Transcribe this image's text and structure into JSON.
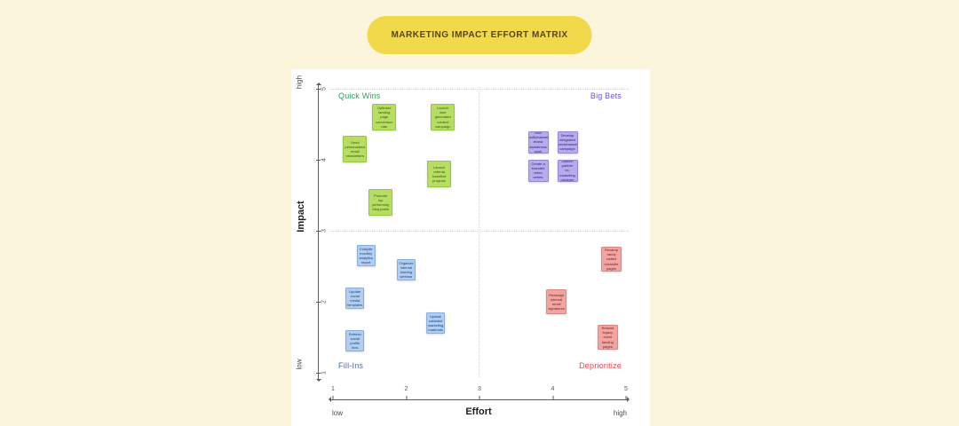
{
  "title": "MARKETING IMPACT EFFORT MATRIX",
  "colors": {
    "page_background": "#FBF5DC",
    "panel_background": "#FFFFFF",
    "title_pill_background": "#F2D84B",
    "title_pill_text": "#55451C",
    "quick_wins_note": "#B7DD62",
    "big_bets_note": "#B6ABEC",
    "fill_ins_note": "#B0CEF3",
    "deprioritize_note": "#F3A4A1"
  },
  "axes": {
    "x": {
      "label": "Effort",
      "min_label": "low",
      "max_label": "high",
      "ticks": [
        1,
        2,
        3,
        4,
        5
      ]
    },
    "y": {
      "label": "Impact",
      "min_label": "low",
      "max_label": "high",
      "ticks": [
        1,
        2,
        3,
        4,
        5
      ]
    }
  },
  "quadrants": [
    {
      "id": "quick-wins",
      "label": "Quick Wins",
      "color": "#2E9E5B",
      "position": "top-left"
    },
    {
      "id": "big-bets",
      "label": "Big Bets",
      "color": "#6857D3",
      "position": "top-right"
    },
    {
      "id": "fill-ins",
      "label": "Fill-Ins",
      "color": "#4A69A8",
      "position": "bottom-left"
    },
    {
      "id": "deprioritize",
      "label": "Deprioritize",
      "color": "#DE4B4B",
      "position": "bottom-right"
    }
  ],
  "chart_data": {
    "type": "scatter",
    "title": "MARKETING IMPACT EFFORT MATRIX",
    "xlabel": "Effort",
    "ylabel": "Impact",
    "xlim": [
      1,
      5
    ],
    "ylim": [
      1,
      5
    ],
    "grid": "dotted quadrant dividers at x=3 and y=3",
    "legend_position": "none",
    "series": [
      {
        "name": "Quick Wins",
        "id": "quick-wins",
        "points": [
          {
            "x": 1.7,
            "y": 4.6,
            "label": "Optimize landing page conversion rate"
          },
          {
            "x": 2.5,
            "y": 4.6,
            "label": "Launch user generated content campaign"
          },
          {
            "x": 1.3,
            "y": 4.15,
            "label": "Send personalized email newsletters"
          },
          {
            "x": 2.45,
            "y": 3.8,
            "label": "Launch referral incentive program"
          },
          {
            "x": 1.65,
            "y": 3.4,
            "label": "Promote top performing blog posts"
          }
        ]
      },
      {
        "name": "Big Bets",
        "id": "big-bets",
        "points": [
          {
            "x": 3.8,
            "y": 4.25,
            "label": "Run multichannel brand awareness push"
          },
          {
            "x": 4.2,
            "y": 4.25,
            "label": "Develop integrated omnichannel campaign"
          },
          {
            "x": 3.8,
            "y": 3.85,
            "label": "Create a branded video series"
          },
          {
            "x": 4.2,
            "y": 3.85,
            "label": "Launch partner co-marketing program"
          }
        ]
      },
      {
        "name": "Fill-Ins",
        "id": "fill-ins",
        "points": [
          {
            "x": 1.45,
            "y": 2.65,
            "label": "Compile monthly analytics report"
          },
          {
            "x": 2.0,
            "y": 2.45,
            "label": "Organize internal training webinar"
          },
          {
            "x": 1.3,
            "y": 2.05,
            "label": "Update social media templates"
          },
          {
            "x": 2.4,
            "y": 1.7,
            "label": "Update outdated marketing materials"
          },
          {
            "x": 1.3,
            "y": 1.45,
            "label": "Refresh social profile bios"
          }
        ]
      },
      {
        "name": "Deprioritize",
        "id": "deprioritize",
        "points": [
          {
            "x": 4.8,
            "y": 2.6,
            "label": "Revamp rarely visited microsite pages"
          },
          {
            "x": 4.05,
            "y": 2.0,
            "label": "Redesign internal email signatures"
          },
          {
            "x": 4.75,
            "y": 1.5,
            "label": "Rebuild legacy event landing pages"
          }
        ]
      }
    ]
  }
}
